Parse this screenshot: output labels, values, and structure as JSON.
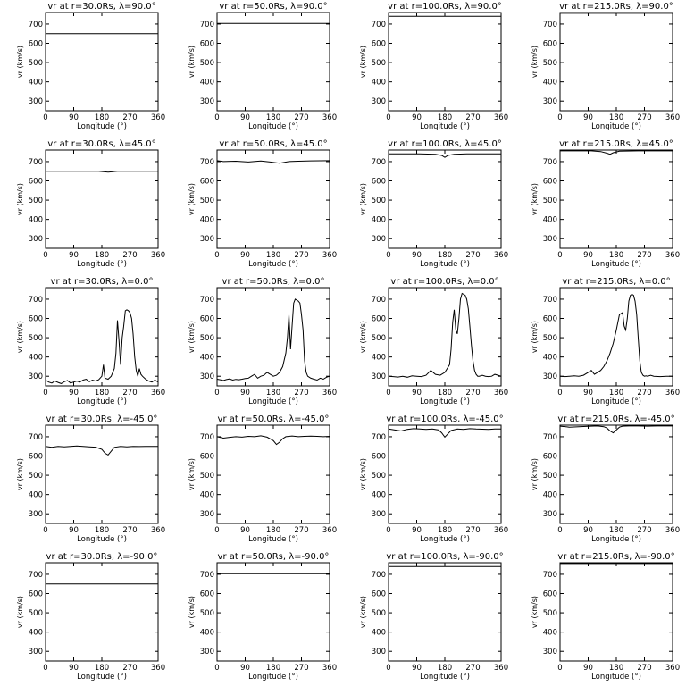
{
  "figure": {
    "xlabel": "Longitude (°)",
    "ylabel": "vr (km/s)",
    "xlim": [
      0,
      360
    ],
    "ylim": [
      250,
      760
    ],
    "xticks": [
      "0",
      "90",
      "180",
      "270",
      "360"
    ],
    "yticks": [
      "300",
      "400",
      "500",
      "600",
      "700"
    ],
    "line_color": "#000000"
  },
  "chart_data": [
    {
      "type": "line",
      "title": "vr at r=30.0Rs, λ=90.0°",
      "x": [
        0,
        360
      ],
      "y": [
        650,
        650
      ]
    },
    {
      "type": "line",
      "title": "vr at r=50.0Rs, λ=90.0°",
      "x": [
        0,
        360
      ],
      "y": [
        703,
        703
      ]
    },
    {
      "type": "line",
      "title": "vr at r=100.0Rs, λ=90.0°",
      "x": [
        0,
        360
      ],
      "y": [
        740,
        740
      ]
    },
    {
      "type": "line",
      "title": "vr at r=215.0Rs, λ=90.0°",
      "x": [
        0,
        360
      ],
      "y": [
        756,
        756
      ]
    },
    {
      "type": "line",
      "title": "vr at r=30.0Rs, λ=45.0°",
      "x": [
        0,
        170,
        200,
        230,
        360
      ],
      "y": [
        650,
        650,
        645,
        650,
        650
      ]
    },
    {
      "type": "line",
      "title": "vr at r=50.0Rs, λ=45.0°",
      "x": [
        0,
        20,
        60,
        100,
        140,
        170,
        200,
        230,
        260,
        300,
        360
      ],
      "y": [
        705,
        700,
        702,
        698,
        703,
        698,
        692,
        700,
        702,
        704,
        705
      ]
    },
    {
      "type": "line",
      "title": "vr at r=100.0Rs, λ=45.0°",
      "x": [
        0,
        100,
        150,
        170,
        180,
        190,
        210,
        250,
        300,
        360
      ],
      "y": [
        740,
        740,
        738,
        732,
        722,
        732,
        738,
        740,
        740,
        740
      ]
    },
    {
      "type": "line",
      "title": "vr at r=215.0Rs, λ=45.0°",
      "x": [
        0,
        100,
        130,
        150,
        160,
        170,
        190,
        250,
        360
      ],
      "y": [
        756,
        756,
        752,
        744,
        738,
        746,
        754,
        756,
        756
      ]
    },
    {
      "type": "line",
      "title": "vr at r=30.0Rs, λ=0.0°",
      "x": [
        0,
        10,
        20,
        30,
        40,
        50,
        60,
        70,
        80,
        90,
        100,
        110,
        120,
        130,
        140,
        150,
        160,
        170,
        180,
        185,
        190,
        200,
        210,
        220,
        225,
        230,
        235,
        240,
        245,
        250,
        255,
        260,
        265,
        270,
        275,
        280,
        285,
        290,
        295,
        300,
        305,
        310,
        320,
        330,
        340,
        350,
        360
      ],
      "y": [
        280,
        270,
        265,
        275,
        268,
        262,
        272,
        278,
        265,
        270,
        275,
        270,
        280,
        285,
        272,
        280,
        275,
        282,
        300,
        360,
        290,
        285,
        300,
        340,
        420,
        590,
        480,
        360,
        500,
        560,
        640,
        645,
        640,
        630,
        600,
        520,
        400,
        330,
        300,
        340,
        310,
        300,
        285,
        275,
        270,
        280,
        270
      ]
    },
    {
      "type": "line",
      "title": "vr at r=50.0Rs, λ=0.0°",
      "x": [
        0,
        10,
        20,
        30,
        40,
        50,
        60,
        70,
        80,
        90,
        100,
        110,
        120,
        130,
        140,
        150,
        160,
        170,
        180,
        190,
        200,
        210,
        220,
        225,
        230,
        235,
        240,
        245,
        250,
        255,
        260,
        265,
        270,
        275,
        280,
        285,
        290,
        300,
        310,
        320,
        330,
        340,
        350,
        360
      ],
      "y": [
        285,
        282,
        278,
        283,
        286,
        280,
        284,
        282,
        285,
        288,
        290,
        300,
        310,
        290,
        300,
        305,
        320,
        310,
        300,
        305,
        320,
        350,
        420,
        500,
        620,
        440,
        560,
        680,
        700,
        695,
        690,
        680,
        620,
        540,
        380,
        320,
        300,
        290,
        285,
        280,
        290,
        285,
        295,
        300
      ]
    },
    {
      "type": "line",
      "title": "vr at r=100.0Rs, λ=0.0°",
      "x": [
        0,
        15,
        30,
        45,
        60,
        75,
        90,
        105,
        120,
        135,
        150,
        165,
        180,
        195,
        200,
        205,
        210,
        215,
        220,
        225,
        230,
        235,
        240,
        245,
        250,
        255,
        260,
        265,
        270,
        275,
        280,
        285,
        290,
        300,
        310,
        320,
        330,
        340,
        350,
        360
      ],
      "y": [
        300,
        298,
        296,
        300,
        295,
        302,
        300,
        298,
        305,
        330,
        310,
        305,
        320,
        360,
        440,
        580,
        645,
        540,
        520,
        600,
        700,
        730,
        725,
        720,
        700,
        650,
        560,
        460,
        380,
        330,
        310,
        300,
        300,
        305,
        300,
        298,
        300,
        310,
        305,
        300
      ]
    },
    {
      "type": "line",
      "title": "vr at r=215.0Rs, λ=0.0°",
      "x": [
        0,
        15,
        30,
        45,
        60,
        75,
        90,
        100,
        110,
        120,
        130,
        140,
        150,
        160,
        170,
        180,
        190,
        200,
        205,
        210,
        215,
        220,
        225,
        230,
        235,
        240,
        245,
        250,
        255,
        260,
        265,
        270,
        275,
        280,
        290,
        300,
        320,
        340,
        360
      ],
      "y": [
        300,
        298,
        300,
        302,
        300,
        305,
        320,
        330,
        310,
        320,
        330,
        350,
        380,
        420,
        470,
        540,
        620,
        630,
        560,
        540,
        600,
        690,
        720,
        725,
        720,
        690,
        620,
        500,
        380,
        320,
        305,
        300,
        302,
        300,
        305,
        300,
        298,
        300,
        300
      ]
    },
    {
      "type": "line",
      "title": "vr at r=30.0Rs, λ=-45.0°",
      "x": [
        0,
        20,
        40,
        60,
        80,
        100,
        120,
        140,
        160,
        180,
        190,
        200,
        210,
        220,
        240,
        260,
        280,
        300,
        320,
        340,
        360
      ],
      "y": [
        650,
        645,
        650,
        648,
        650,
        652,
        650,
        648,
        646,
        635,
        615,
        605,
        625,
        645,
        650,
        648,
        650,
        649,
        650,
        650,
        650
      ]
    },
    {
      "type": "line",
      "title": "vr at r=50.0Rs, λ=-45.0°",
      "x": [
        0,
        20,
        40,
        60,
        80,
        100,
        120,
        140,
        160,
        180,
        190,
        200,
        210,
        220,
        240,
        260,
        280,
        300,
        320,
        340,
        360
      ],
      "y": [
        700,
        693,
        697,
        700,
        698,
        702,
        700,
        705,
        698,
        680,
        660,
        672,
        690,
        700,
        704,
        700,
        702,
        703,
        702,
        700,
        702
      ]
    },
    {
      "type": "line",
      "title": "vr at r=100.0Rs, λ=-45.0°",
      "x": [
        0,
        20,
        40,
        60,
        80,
        100,
        120,
        140,
        160,
        170,
        180,
        190,
        200,
        220,
        240,
        260,
        280,
        300,
        320,
        340,
        360
      ],
      "y": [
        740,
        735,
        730,
        738,
        742,
        740,
        738,
        740,
        735,
        720,
        698,
        715,
        732,
        740,
        738,
        742,
        740,
        739,
        738,
        740,
        740
      ]
    },
    {
      "type": "line",
      "title": "vr at r=215.0Rs, λ=-45.0°",
      "x": [
        0,
        30,
        60,
        90,
        120,
        140,
        150,
        160,
        170,
        180,
        190,
        200,
        220,
        250,
        280,
        310,
        340,
        360
      ],
      "y": [
        755,
        750,
        752,
        754,
        756,
        752,
        745,
        730,
        720,
        735,
        750,
        755,
        756,
        756,
        755,
        756,
        756,
        756
      ]
    },
    {
      "type": "line",
      "title": "vr at r=30.0Rs, λ=-90.0°",
      "x": [
        0,
        360
      ],
      "y": [
        650,
        650
      ]
    },
    {
      "type": "line",
      "title": "vr at r=50.0Rs, λ=-90.0°",
      "x": [
        0,
        360
      ],
      "y": [
        703,
        703
      ]
    },
    {
      "type": "line",
      "title": "vr at r=100.0Rs, λ=-90.0°",
      "x": [
        0,
        360
      ],
      "y": [
        740,
        740
      ]
    },
    {
      "type": "line",
      "title": "vr at r=215.0Rs, λ=-90.0°",
      "x": [
        0,
        360
      ],
      "y": [
        756,
        756
      ]
    }
  ]
}
